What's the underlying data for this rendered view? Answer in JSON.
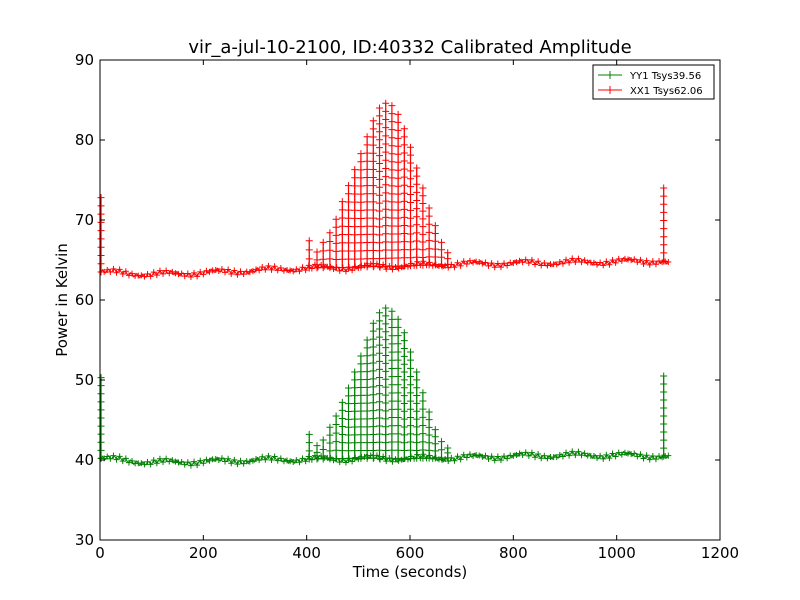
{
  "chart_data": {
    "type": "line",
    "title": "vir_a-jul-10-2100, ID:40332 Calibrated Amplitude",
    "xlabel": "Time (seconds)",
    "ylabel": "Power in Kelvin",
    "xlim": [
      0,
      1200
    ],
    "ylim": [
      30,
      90
    ],
    "xticks": [
      "0",
      "200",
      "400",
      "600",
      "800",
      "1000",
      "1200"
    ],
    "yticks": [
      "30",
      "40",
      "50",
      "60",
      "70",
      "80",
      "90"
    ],
    "grid": false,
    "legend_position": "top-right",
    "marker": "+",
    "series": [
      {
        "name": "YY1 Tsys39.56",
        "color": "#008000",
        "baseline_points": [
          [
            2,
            40.2
          ],
          [
            100,
            39.7
          ],
          [
            200,
            39.8
          ],
          [
            300,
            40.0
          ],
          [
            400,
            40.1
          ],
          [
            500,
            40.2
          ],
          [
            600,
            40.2
          ],
          [
            700,
            40.3
          ],
          [
            800,
            40.5
          ],
          [
            900,
            40.6
          ],
          [
            1000,
            40.6
          ],
          [
            1090,
            40.5
          ],
          [
            1100,
            40.4
          ]
        ],
        "spikes": [
          [
            2,
            50.3
          ],
          [
            405,
            43.2
          ],
          [
            420,
            41.8
          ],
          [
            432,
            42.5
          ],
          [
            445,
            44.1
          ],
          [
            457,
            45.5
          ],
          [
            469,
            47.2
          ],
          [
            481,
            49.0
          ],
          [
            493,
            51.0
          ],
          [
            505,
            53.0
          ],
          [
            517,
            55.0
          ],
          [
            529,
            57.1
          ],
          [
            541,
            58.4
          ],
          [
            553,
            59.0
          ],
          [
            565,
            58.6
          ],
          [
            577,
            57.6
          ],
          [
            589,
            55.9
          ],
          [
            601,
            53.5
          ],
          [
            613,
            51.0
          ],
          [
            625,
            48.4
          ],
          [
            637,
            46.0
          ],
          [
            649,
            43.8
          ],
          [
            661,
            42.3
          ],
          [
            673,
            41.5
          ],
          [
            1091,
            50.5
          ]
        ]
      },
      {
        "name": "XX1 Tsys62.06",
        "color": "#ff0000",
        "baseline_points": [
          [
            2,
            63.5
          ],
          [
            100,
            63.2
          ],
          [
            200,
            63.4
          ],
          [
            300,
            63.7
          ],
          [
            400,
            64.0
          ],
          [
            500,
            64.1
          ],
          [
            600,
            64.3
          ],
          [
            700,
            64.5
          ],
          [
            800,
            64.6
          ],
          [
            900,
            64.7
          ],
          [
            1000,
            64.8
          ],
          [
            1090,
            64.9
          ],
          [
            1100,
            64.6
          ]
        ],
        "spikes": [
          [
            2,
            72.8
          ],
          [
            405,
            67.4
          ],
          [
            420,
            66.0
          ],
          [
            432,
            67.2
          ],
          [
            445,
            68.4
          ],
          [
            457,
            70.1
          ],
          [
            469,
            72.3
          ],
          [
            481,
            74.3
          ],
          [
            493,
            76.3
          ],
          [
            505,
            78.3
          ],
          [
            517,
            80.4
          ],
          [
            529,
            82.4
          ],
          [
            541,
            84.0
          ],
          [
            553,
            84.6
          ],
          [
            565,
            84.3
          ],
          [
            577,
            83.2
          ],
          [
            589,
            81.4
          ],
          [
            601,
            79.1
          ],
          [
            613,
            76.5
          ],
          [
            625,
            74.0
          ],
          [
            637,
            71.5
          ],
          [
            649,
            69.3
          ],
          [
            661,
            67.2
          ],
          [
            673,
            65.9
          ],
          [
            1091,
            74.0
          ]
        ]
      }
    ]
  }
}
